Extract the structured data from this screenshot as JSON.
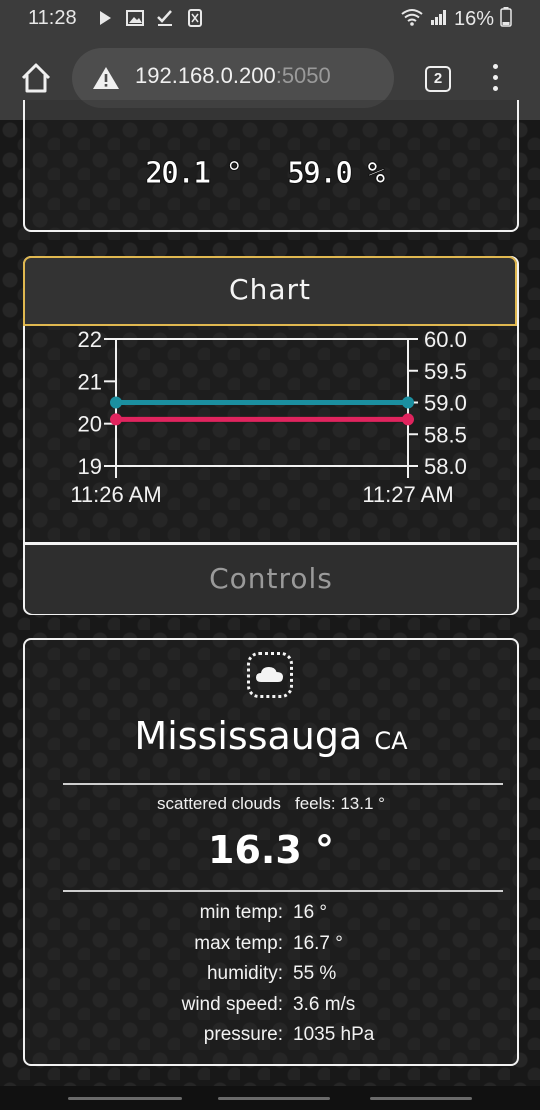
{
  "status_bar": {
    "time": "11:28",
    "battery": "16%"
  },
  "browser": {
    "url_host": "192.168.0.200",
    "url_port": ":5050",
    "tab_count": "2"
  },
  "sensor": {
    "temperature": "20.1 °",
    "humidity": "59.0 %"
  },
  "sections": {
    "chart_title": "Chart",
    "controls_title": "Controls"
  },
  "chart_data": {
    "type": "line",
    "x": [
      "11:26 AM",
      "11:27 AM"
    ],
    "series": [
      {
        "values": [
          20.1,
          20.1
        ],
        "axis": "left",
        "color": "#e0245e"
      },
      {
        "values": [
          59.0,
          59.0
        ],
        "axis": "right",
        "color": "#1b8fa0"
      }
    ],
    "left_ticks": [
      "22",
      "21",
      "20",
      "19"
    ],
    "right_ticks": [
      "60.0",
      "59.5",
      "59.0",
      "58.5",
      "58.0"
    ],
    "ylim_left": [
      19,
      22
    ],
    "ylim_right": [
      58.0,
      60.0
    ]
  },
  "weather": {
    "city": "Mississauga",
    "country": "CA",
    "description": "scattered clouds",
    "feels": "feels: 13.1 °",
    "temp": "16.3 °",
    "stats": [
      {
        "label": "min temp:",
        "value": "16 °"
      },
      {
        "label": "max temp:",
        "value": "16.7 °"
      },
      {
        "label": "humidity:",
        "value": "55 %"
      },
      {
        "label": "wind speed:",
        "value": "3.6 m/s"
      },
      {
        "label": "pressure:",
        "value": "1035 hPa"
      }
    ]
  }
}
